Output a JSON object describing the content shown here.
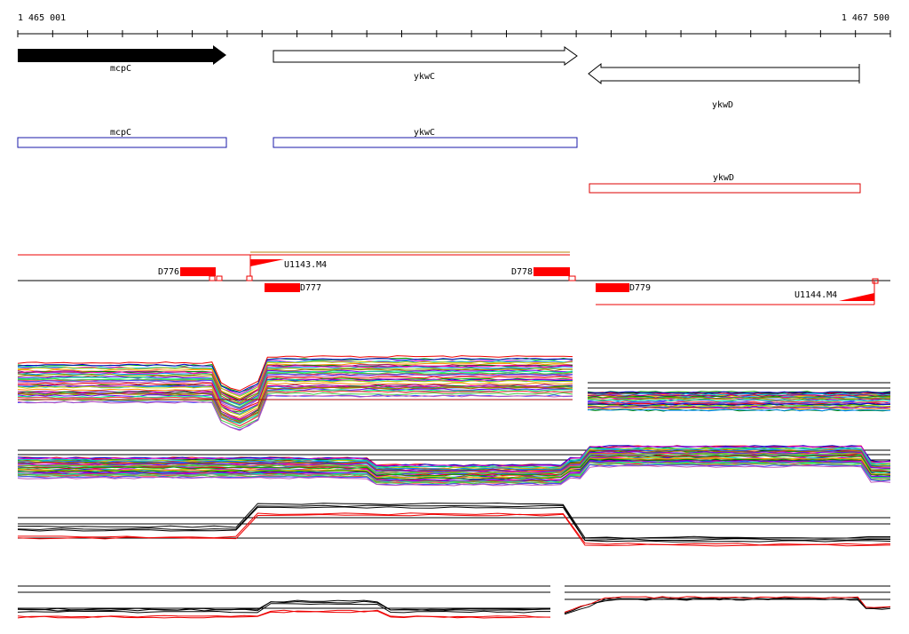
{
  "ruler": {
    "start": "1 465 001",
    "end": "1 467 500"
  },
  "genes": [
    {
      "label": "mcpC"
    },
    {
      "label": "ykwC"
    },
    {
      "label": "ykwD"
    }
  ],
  "boxes": [
    {
      "label": "mcpC"
    },
    {
      "label": "ykwC"
    },
    {
      "label": "ykwD"
    }
  ],
  "features": [
    {
      "label": "D776"
    },
    {
      "label": "U1143.M4"
    },
    {
      "label": "D777"
    },
    {
      "label": "D778"
    },
    {
      "label": "D779"
    },
    {
      "label": "U1144.M4"
    }
  ]
}
